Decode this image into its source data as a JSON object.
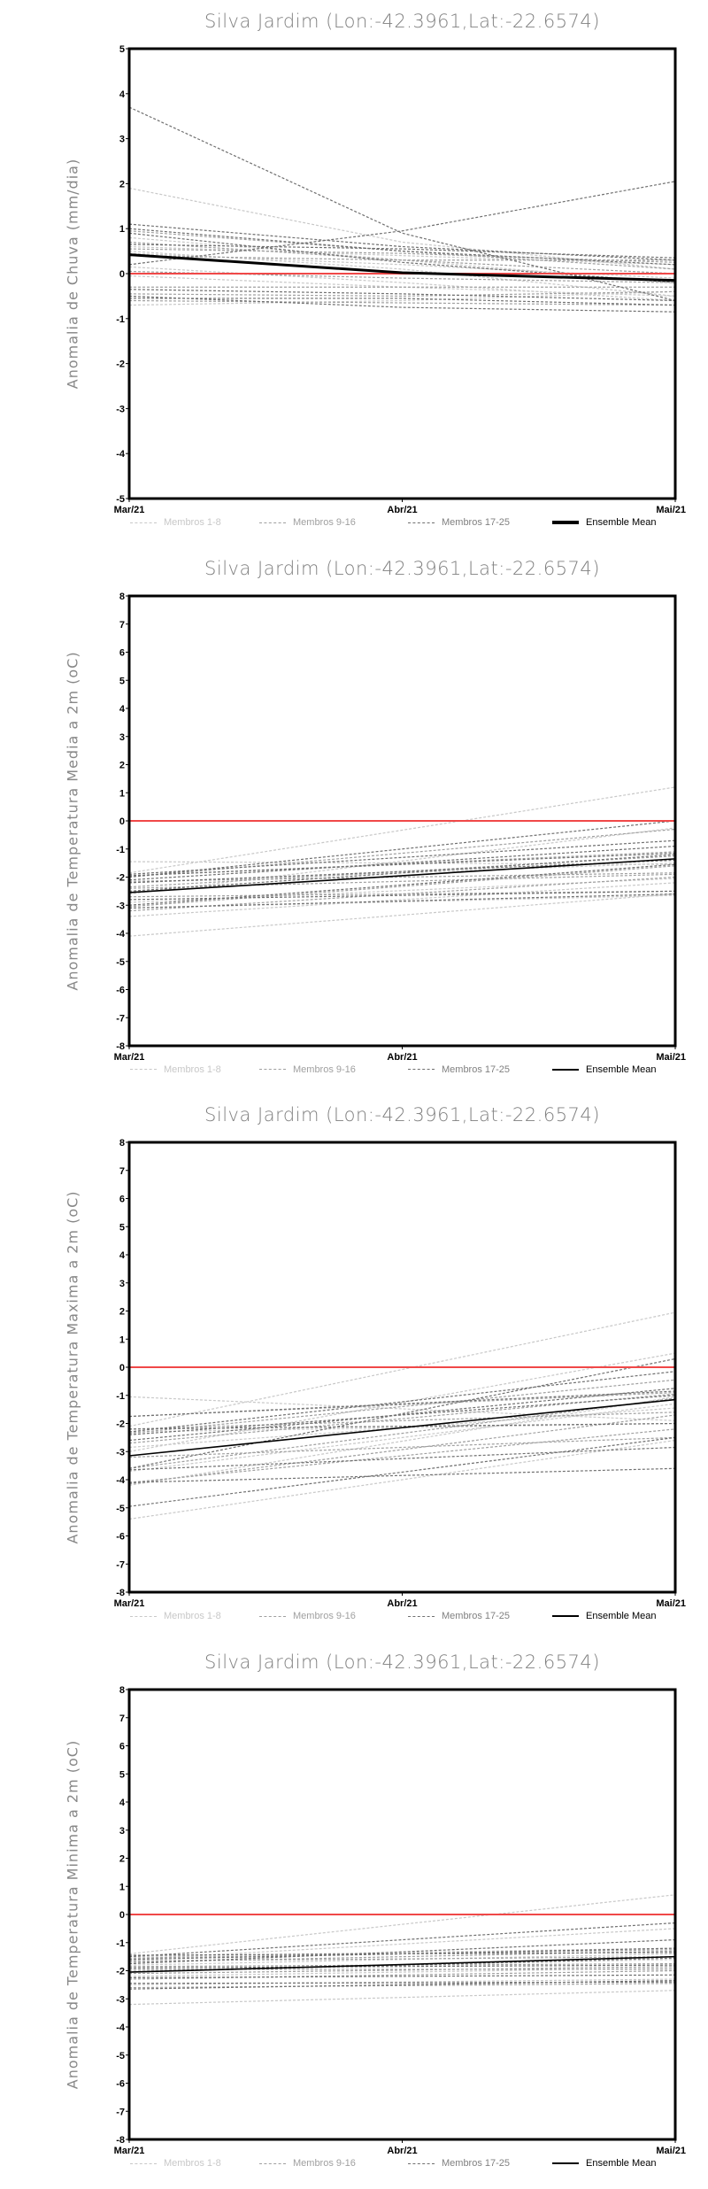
{
  "colors": {
    "members_1_8": "#c8c8c8",
    "members_9_16": "#a0a0a0",
    "members_17_25": "#707070",
    "mean": "#000000",
    "zero_line": "#f04848"
  },
  "legend": {
    "g1": "Membros 1-8",
    "g2": "Membros 9-16",
    "g3": "Membros 17-25",
    "mean": "Ensemble Mean"
  },
  "chart_data": [
    {
      "type": "line",
      "title": "Silva Jardim (Lon:-42.3961,Lat:-22.6574)",
      "ylabel": "Anomalia de Chuva (mm/dia)",
      "xlabel": "",
      "categories": [
        "Mar/21",
        "Abr/21",
        "Mai/21"
      ],
      "ylim": [
        -5,
        5
      ],
      "yticks": [
        -5,
        -4,
        -3,
        -2,
        -1,
        0,
        1,
        2,
        3,
        4,
        5
      ],
      "grid": false,
      "legend_position": "bottom",
      "members": [
        [
          1.9,
          0.7,
          0.1
        ],
        [
          0.8,
          0.3,
          -0.2
        ],
        [
          0.5,
          0.1,
          -0.5
        ],
        [
          0.15,
          -0.2,
          -0.6
        ],
        [
          -0.05,
          -0.3,
          -0.5
        ],
        [
          -0.7,
          -0.6,
          -0.4
        ],
        [
          0.6,
          0.4,
          0.2
        ],
        [
          0.45,
          0.2,
          -0.1
        ],
        [
          0.95,
          0.5,
          0.1
        ],
        [
          0.7,
          0.3,
          0.0
        ],
        [
          0.4,
          0.3,
          0.3
        ],
        [
          -0.3,
          -0.3,
          -0.3
        ],
        [
          -0.45,
          -0.5,
          -0.4
        ],
        [
          0.05,
          -0.1,
          -0.2
        ],
        [
          0.55,
          0.45,
          0.25
        ],
        [
          -0.6,
          -0.65,
          -0.7
        ],
        [
          3.7,
          0.9,
          -0.6
        ],
        [
          0.2,
          0.95,
          2.05
        ],
        [
          1.1,
          0.6,
          0.3
        ],
        [
          1.0,
          0.5,
          0.2
        ],
        [
          0.9,
          0.25,
          -0.2
        ],
        [
          -0.35,
          -0.45,
          -0.6
        ],
        [
          -0.5,
          -0.75,
          -0.85
        ],
        [
          0.65,
          0.55,
          0.35
        ],
        [
          -0.55,
          -0.55,
          -0.7
        ]
      ],
      "mean": [
        0.42,
        0.02,
        -0.15
      ]
    },
    {
      "type": "line",
      "title": "Silva Jardim (Lon:-42.3961,Lat:-22.6574)",
      "ylabel": "Anomalia de Temperatura Media a 2m (oC)",
      "xlabel": "",
      "categories": [
        "Mar/21",
        "Abr/21",
        "Mai/21"
      ],
      "ylim": [
        -8,
        8
      ],
      "yticks": [
        -8,
        -7,
        -6,
        -5,
        -4,
        -3,
        -2,
        -1,
        0,
        1,
        2,
        3,
        4,
        5,
        6,
        7,
        8
      ],
      "grid": false,
      "legend_position": "bottom",
      "members": [
        [
          -1.85,
          -0.33,
          1.2
        ],
        [
          -4.1,
          -3.35,
          -2.6
        ],
        [
          -3.4,
          -2.8,
          -2.2
        ],
        [
          -2.6,
          -1.43,
          -0.25
        ],
        [
          -2.9,
          -2.48,
          -2.05
        ],
        [
          -2.2,
          -1.85,
          -1.5
        ],
        [
          -1.45,
          -1.5,
          -1.55
        ],
        [
          -3.1,
          -2.88,
          -2.65
        ],
        [
          -2.0,
          -1.15,
          -0.3
        ],
        [
          -2.4,
          -2.15,
          -1.9
        ],
        [
          -1.95,
          -1.53,
          -1.1
        ],
        [
          -2.7,
          -2.6,
          -2.5
        ],
        [
          -3.05,
          -2.33,
          -1.6
        ],
        [
          -2.35,
          -1.8,
          -1.25
        ],
        [
          -2.15,
          -2.0,
          -1.85
        ],
        [
          -3.2,
          -2.6,
          -2.0
        ],
        [
          -2.0,
          -1.0,
          0.0
        ],
        [
          -1.9,
          -1.3,
          -0.7
        ],
        [
          -2.1,
          -1.5,
          -0.9
        ],
        [
          -2.8,
          -2.65,
          -2.5
        ],
        [
          -3.0,
          -2.28,
          -1.55
        ],
        [
          -2.2,
          -1.8,
          -1.4
        ],
        [
          -3.1,
          -2.85,
          -2.6
        ],
        [
          -1.95,
          -1.55,
          -1.15
        ],
        [
          -2.5,
          -1.85,
          -1.2
        ]
      ],
      "mean": [
        -2.55,
        -1.95,
        -1.35
      ]
    },
    {
      "type": "line",
      "title": "Silva Jardim (Lon:-42.3961,Lat:-22.6574)",
      "ylabel": "Anomalia de Temperatura Maxima a 2m (oC)",
      "xlabel": "",
      "categories": [
        "Mar/21",
        "Abr/21",
        "Mai/21"
      ],
      "ylim": [
        -8,
        8
      ],
      "yticks": [
        -8,
        -7,
        -6,
        -5,
        -4,
        -3,
        -2,
        -1,
        0,
        1,
        2,
        3,
        4,
        5,
        6,
        7,
        8
      ],
      "grid": false,
      "legend_position": "bottom",
      "members": [
        [
          -2.1,
          -0.08,
          1.95
        ],
        [
          -5.4,
          -4.0,
          -2.6
        ],
        [
          -3.0,
          -1.25,
          0.5
        ],
        [
          -1.05,
          -1.48,
          -1.9
        ],
        [
          -4.2,
          -2.63,
          -1.05
        ],
        [
          -2.85,
          -2.15,
          -1.45
        ],
        [
          -2.3,
          -2.15,
          -2.0
        ],
        [
          -3.7,
          -2.5,
          -1.3
        ],
        [
          -2.35,
          -1.4,
          -0.45
        ],
        [
          -4.1,
          -3.15,
          -2.2
        ],
        [
          -2.7,
          -1.83,
          -0.95
        ],
        [
          -1.75,
          -1.33,
          -0.9
        ],
        [
          -3.6,
          -2.35,
          -1.1
        ],
        [
          -2.2,
          -1.9,
          -1.6
        ],
        [
          -3.2,
          -2.85,
          -2.5
        ],
        [
          -4.15,
          -2.93,
          -1.7
        ],
        [
          -3.6,
          -1.65,
          0.3
        ],
        [
          -2.3,
          -1.23,
          -0.15
        ],
        [
          -4.1,
          -3.85,
          -3.6
        ],
        [
          -4.95,
          -3.73,
          -2.5
        ],
        [
          -2.6,
          -1.68,
          -0.75
        ],
        [
          -3.65,
          -3.25,
          -2.85
        ],
        [
          -2.4,
          -1.7,
          -1.0
        ],
        [
          -1.75,
          -1.3,
          -0.85
        ],
        [
          -2.2,
          -2.1,
          -2.0
        ]
      ],
      "mean": [
        -3.15,
        -2.15,
        -1.15
      ]
    },
    {
      "type": "line",
      "title": "Silva Jardim (Lon:-42.3961,Lat:-22.6574)",
      "ylabel": "Anomalia de Temperatura Minima a 2m (oC)",
      "xlabel": "",
      "categories": [
        "Mar/21",
        "Abr/21",
        "Mai/21"
      ],
      "ylim": [
        -8,
        8
      ],
      "yticks": [
        -8,
        -7,
        -6,
        -5,
        -4,
        -3,
        -2,
        -1,
        0,
        1,
        2,
        3,
        4,
        5,
        6,
        7,
        8
      ],
      "grid": false,
      "legend_position": "bottom",
      "members": [
        [
          -1.4,
          -0.35,
          0.7
        ],
        [
          -3.2,
          -2.95,
          -2.7
        ],
        [
          -1.6,
          -1.05,
          -0.5
        ],
        [
          -2.2,
          -2.05,
          -1.9
        ],
        [
          -1.8,
          -1.6,
          -1.4
        ],
        [
          -2.5,
          -2.4,
          -2.3
        ],
        [
          -1.5,
          -1.35,
          -1.2
        ],
        [
          -2.0,
          -1.8,
          -1.6
        ],
        [
          -1.7,
          -1.5,
          -1.3
        ],
        [
          -2.3,
          -2.15,
          -2.0
        ],
        [
          -1.55,
          -1.4,
          -1.25
        ],
        [
          -2.6,
          -2.53,
          -2.45
        ],
        [
          -1.85,
          -1.8,
          -1.75
        ],
        [
          -2.1,
          -1.98,
          -1.85
        ],
        [
          -1.65,
          -1.58,
          -1.5
        ],
        [
          -1.95,
          -1.95,
          -1.95
        ],
        [
          -1.5,
          -0.9,
          -0.3
        ],
        [
          -1.75,
          -1.33,
          -0.9
        ],
        [
          -2.65,
          -2.5,
          -2.35
        ],
        [
          -1.6,
          -1.4,
          -1.2
        ],
        [
          -2.25,
          -2.2,
          -2.15
        ],
        [
          -1.9,
          -1.85,
          -1.8
        ],
        [
          -2.05,
          -1.8,
          -1.55
        ],
        [
          -1.45,
          -1.4,
          -1.35
        ],
        [
          -2.45,
          -2.43,
          -2.4
        ]
      ],
      "mean": [
        -2.05,
        -1.78,
        -1.5
      ]
    }
  ]
}
